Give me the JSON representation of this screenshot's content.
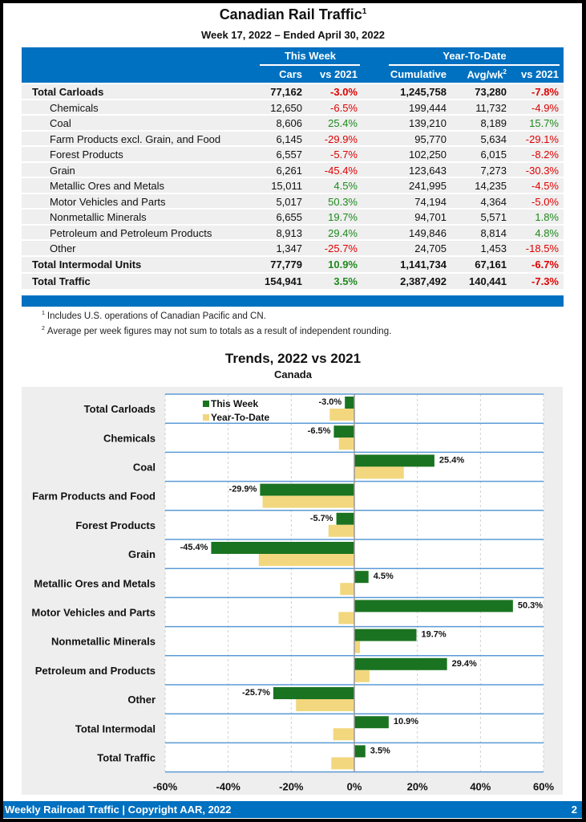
{
  "header": {
    "title": "Canadian Rail Traffic",
    "title_footnote": "1",
    "subtitle": "Week 17, 2022 – Ended April 30, 2022"
  },
  "table": {
    "groups": [
      "This Week",
      "Year-To-Date"
    ],
    "columns": [
      "Cars",
      "vs 2021",
      "Cumulative",
      "Avg/wk",
      "vs 2021"
    ],
    "avg_footnote": "2",
    "rows": [
      {
        "label": "Total Carloads",
        "bold": true,
        "cars": "77,162",
        "vs_week": "-3.0%",
        "cumulative": "1,245,758",
        "avg": "73,280",
        "vs_ytd": "-7.8%"
      },
      {
        "label": "Chemicals",
        "bold": false,
        "cars": "12,650",
        "vs_week": "-6.5%",
        "cumulative": "199,444",
        "avg": "11,732",
        "vs_ytd": "-4.9%"
      },
      {
        "label": "Coal",
        "bold": false,
        "cars": "8,606",
        "vs_week": "25.4%",
        "cumulative": "139,210",
        "avg": "8,189",
        "vs_ytd": "15.7%"
      },
      {
        "label": "Farm Products excl. Grain, and Food",
        "bold": false,
        "cars": "6,145",
        "vs_week": "-29.9%",
        "cumulative": "95,770",
        "avg": "5,634",
        "vs_ytd": "-29.1%"
      },
      {
        "label": "Forest Products",
        "bold": false,
        "cars": "6,557",
        "vs_week": "-5.7%",
        "cumulative": "102,250",
        "avg": "6,015",
        "vs_ytd": "-8.2%"
      },
      {
        "label": "Grain",
        "bold": false,
        "cars": "6,261",
        "vs_week": "-45.4%",
        "cumulative": "123,643",
        "avg": "7,273",
        "vs_ytd": "-30.3%"
      },
      {
        "label": "Metallic Ores and Metals",
        "bold": false,
        "cars": "15,011",
        "vs_week": "4.5%",
        "cumulative": "241,995",
        "avg": "14,235",
        "vs_ytd": "-4.5%"
      },
      {
        "label": "Motor Vehicles and Parts",
        "bold": false,
        "cars": "5,017",
        "vs_week": "50.3%",
        "cumulative": "74,194",
        "avg": "4,364",
        "vs_ytd": "-5.0%"
      },
      {
        "label": "Nonmetallic Minerals",
        "bold": false,
        "cars": "6,655",
        "vs_week": "19.7%",
        "cumulative": "94,701",
        "avg": "5,571",
        "vs_ytd": "1.8%"
      },
      {
        "label": "Petroleum and Petroleum Products",
        "bold": false,
        "cars": "8,913",
        "vs_week": "29.4%",
        "cumulative": "149,846",
        "avg": "8,814",
        "vs_ytd": "4.8%"
      },
      {
        "label": "Other",
        "bold": false,
        "cars": "1,347",
        "vs_week": "-25.7%",
        "cumulative": "24,705",
        "avg": "1,453",
        "vs_ytd": "-18.5%"
      },
      {
        "label": "Total Intermodal Units",
        "bold": true,
        "cars": "77,779",
        "vs_week": "10.9%",
        "cumulative": "1,141,734",
        "avg": "67,161",
        "vs_ytd": "-6.7%"
      },
      {
        "label": "Total Traffic",
        "bold": true,
        "cars": "154,941",
        "vs_week": "3.5%",
        "cumulative": "2,387,492",
        "avg": "140,441",
        "vs_ytd": "-7.3%"
      }
    ]
  },
  "footnotes": [
    {
      "mark": "1",
      "text": "Includes U.S. operations of Canadian Pacific and CN."
    },
    {
      "mark": "2",
      "text": "Average per week figures may not sum to totals as a result of independent rounding."
    }
  ],
  "colors": {
    "brand_blue": "#0070c0",
    "negative": "#e00000",
    "positive": "#1e8a1e",
    "this_week_bar": "#1a7320",
    "ytd_bar": "#f2d77e"
  },
  "chart_data": {
    "type": "bar",
    "orientation": "horizontal",
    "title": "Trends, 2022 vs 2021",
    "subtitle": "Canada",
    "categories": [
      "Total Carloads",
      "Chemicals",
      "Coal",
      "Farm Products and Food",
      "Forest Products",
      "Grain",
      "Metallic Ores and Metals",
      "Motor Vehicles and Parts",
      "Nonmetallic Minerals",
      "Petroleum and Products",
      "Other",
      "Total Intermodal",
      "Total Traffic"
    ],
    "series": [
      {
        "name": "This Week",
        "values": [
          -3.0,
          -6.5,
          25.4,
          -29.9,
          -5.7,
          -45.4,
          4.5,
          50.3,
          19.7,
          29.4,
          -25.7,
          10.9,
          3.5
        ],
        "labels": [
          "-3.0%",
          "-6.5%",
          "25.4%",
          "-29.9%",
          "-5.7%",
          "-45.4%",
          "4.5%",
          "50.3%",
          "19.7%",
          "29.4%",
          "-25.7%",
          "10.9%",
          "3.5%"
        ]
      },
      {
        "name": "Year-To-Date",
        "values": [
          -7.8,
          -4.9,
          15.7,
          -29.1,
          -8.2,
          -30.3,
          -4.5,
          -5.0,
          1.8,
          4.8,
          -18.5,
          -6.7,
          -7.3
        ]
      }
    ],
    "xlim": [
      -60,
      60
    ],
    "xticks": [
      "-60%",
      "-40%",
      "-20%",
      "0%",
      "20%",
      "40%",
      "60%"
    ],
    "xtick_values": [
      -60,
      -40,
      -20,
      0,
      20,
      40,
      60
    ],
    "grid": true,
    "legend": "top-left"
  },
  "footer": {
    "text": "Weekly Railroad Traffic | Copyright AAR, 2022",
    "page": "2"
  }
}
